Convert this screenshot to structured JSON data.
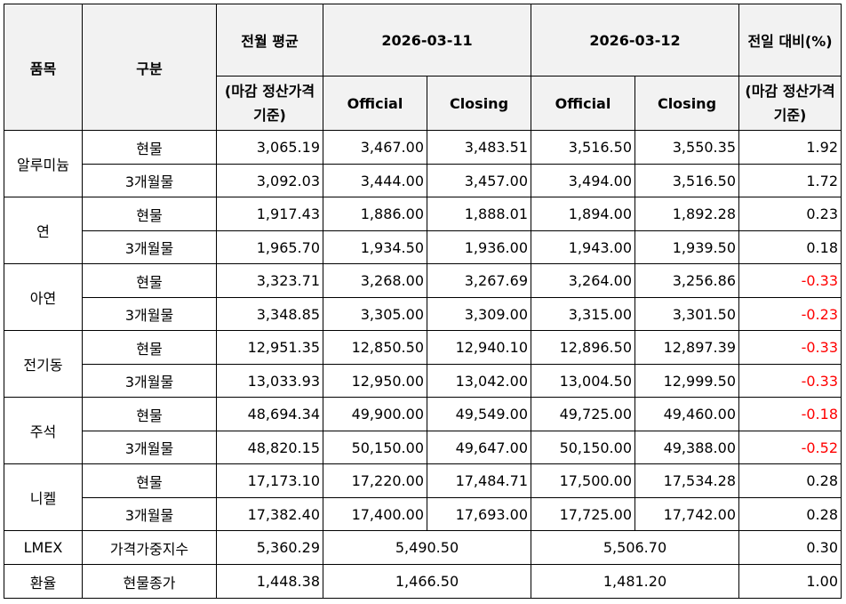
{
  "header": {
    "item": "품목",
    "category": "구분",
    "prev_month_avg": "전월 평균",
    "prev_month_avg_sub": "(마감 정산가격 기준)",
    "date1": "2026-03-11",
    "date2": "2026-03-12",
    "official": "Official",
    "closing": "Closing",
    "day_change": "전일 대비(%)",
    "day_change_sub": "(마감 정산가격 기준)"
  },
  "groups": [
    {
      "name": "알루미늄",
      "rows": [
        {
          "category": "현물",
          "avg": "3,065.19",
          "d1_official": "3,467.00",
          "d1_closing": "3,483.51",
          "d2_official": "3,516.50",
          "d2_closing": "3,550.35",
          "change": "1.92"
        },
        {
          "category": "3개월물",
          "avg": "3,092.03",
          "d1_official": "3,444.00",
          "d1_closing": "3,457.00",
          "d2_official": "3,494.00",
          "d2_closing": "3,516.50",
          "change": "1.72"
        }
      ]
    },
    {
      "name": "연",
      "rows": [
        {
          "category": "현물",
          "avg": "1,917.43",
          "d1_official": "1,886.00",
          "d1_closing": "1,888.01",
          "d2_official": "1,894.00",
          "d2_closing": "1,892.28",
          "change": "0.23"
        },
        {
          "category": "3개월물",
          "avg": "1,965.70",
          "d1_official": "1,934.50",
          "d1_closing": "1,936.00",
          "d2_official": "1,943.00",
          "d2_closing": "1,939.50",
          "change": "0.18"
        }
      ]
    },
    {
      "name": "아연",
      "rows": [
        {
          "category": "현물",
          "avg": "3,323.71",
          "d1_official": "3,268.00",
          "d1_closing": "3,267.69",
          "d2_official": "3,264.00",
          "d2_closing": "3,256.86",
          "change": "-0.33"
        },
        {
          "category": "3개월물",
          "avg": "3,348.85",
          "d1_official": "3,305.00",
          "d1_closing": "3,309.00",
          "d2_official": "3,315.00",
          "d2_closing": "3,301.50",
          "change": "-0.23"
        }
      ]
    },
    {
      "name": "전기동",
      "rows": [
        {
          "category": "현물",
          "avg": "12,951.35",
          "d1_official": "12,850.50",
          "d1_closing": "12,940.10",
          "d2_official": "12,896.50",
          "d2_closing": "12,897.39",
          "change": "-0.33"
        },
        {
          "category": "3개월물",
          "avg": "13,033.93",
          "d1_official": "12,950.00",
          "d1_closing": "13,042.00",
          "d2_official": "13,004.50",
          "d2_closing": "12,999.50",
          "change": "-0.33"
        }
      ]
    },
    {
      "name": "주석",
      "rows": [
        {
          "category": "현물",
          "avg": "48,694.34",
          "d1_official": "49,900.00",
          "d1_closing": "49,549.00",
          "d2_official": "49,725.00",
          "d2_closing": "49,460.00",
          "change": "-0.18"
        },
        {
          "category": "3개월물",
          "avg": "48,820.15",
          "d1_official": "50,150.00",
          "d1_closing": "49,647.00",
          "d2_official": "50,150.00",
          "d2_closing": "49,388.00",
          "change": "-0.52"
        }
      ]
    },
    {
      "name": "니켈",
      "rows": [
        {
          "category": "현물",
          "avg": "17,173.10",
          "d1_official": "17,220.00",
          "d1_closing": "17,484.71",
          "d2_official": "17,500.00",
          "d2_closing": "17,534.28",
          "change": "0.28"
        },
        {
          "category": "3개월물",
          "avg": "17,382.40",
          "d1_official": "17,400.00",
          "d1_closing": "17,693.00",
          "d2_official": "17,725.00",
          "d2_closing": "17,742.00",
          "change": "0.28"
        }
      ]
    }
  ],
  "single_rows": [
    {
      "name": "LMEX",
      "category": "가격가중지수",
      "avg": "5,360.29",
      "d1": "5,490.50",
      "d2": "5,506.70",
      "change": "0.30"
    },
    {
      "name": "환율",
      "category": "현물종가",
      "avg": "1,448.38",
      "d1": "1,466.50",
      "d2": "1,481.20",
      "change": "1.00"
    }
  ]
}
